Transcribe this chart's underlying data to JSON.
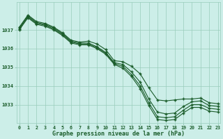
{
  "xlabel": "Graphe pression niveau de la mer (hPa)",
  "bg_color": "#cceee8",
  "grid_color": "#99ccbb",
  "line_color": "#1a5c2a",
  "hours": [
    0,
    1,
    2,
    3,
    4,
    5,
    6,
    7,
    8,
    9,
    10,
    11,
    12,
    13,
    14,
    15,
    16,
    17,
    18,
    19,
    20,
    21,
    22,
    23
  ],
  "line1": [
    1037.15,
    1037.8,
    1037.45,
    1037.35,
    1037.15,
    1036.85,
    1036.45,
    1036.35,
    1036.4,
    1036.25,
    1035.95,
    1035.35,
    1035.3,
    1035.05,
    1034.65,
    1033.9,
    1033.25,
    1033.2,
    1033.25,
    1033.3,
    1033.3,
    1033.35,
    1033.1,
    1033.05
  ],
  "line2": [
    1037.1,
    1037.75,
    1037.4,
    1037.3,
    1037.1,
    1036.8,
    1036.4,
    1036.3,
    1036.3,
    1036.1,
    1035.8,
    1035.25,
    1035.15,
    1034.75,
    1034.2,
    1033.3,
    1032.6,
    1032.5,
    1032.55,
    1032.9,
    1033.15,
    1033.2,
    1032.95,
    1032.9
  ],
  "line3": [
    1037.05,
    1037.7,
    1037.35,
    1037.25,
    1037.05,
    1036.75,
    1036.35,
    1036.25,
    1036.25,
    1036.05,
    1035.75,
    1035.2,
    1035.05,
    1034.6,
    1034.0,
    1033.1,
    1032.35,
    1032.3,
    1032.35,
    1032.7,
    1033.0,
    1033.0,
    1032.8,
    1032.75
  ],
  "line4": [
    1037.0,
    1037.65,
    1037.3,
    1037.2,
    1037.0,
    1036.7,
    1036.3,
    1036.2,
    1036.2,
    1036.0,
    1035.7,
    1035.15,
    1034.95,
    1034.5,
    1033.85,
    1032.95,
    1032.2,
    1032.15,
    1032.2,
    1032.55,
    1032.85,
    1032.85,
    1032.65,
    1032.6
  ],
  "ylim_min": 1032.0,
  "ylim_max": 1038.5,
  "yticks": [
    1033,
    1034,
    1035,
    1036,
    1037
  ],
  "xticks": [
    0,
    1,
    2,
    3,
    4,
    5,
    6,
    7,
    8,
    9,
    10,
    11,
    12,
    13,
    14,
    15,
    16,
    17,
    18,
    19,
    20,
    21,
    22,
    23
  ]
}
